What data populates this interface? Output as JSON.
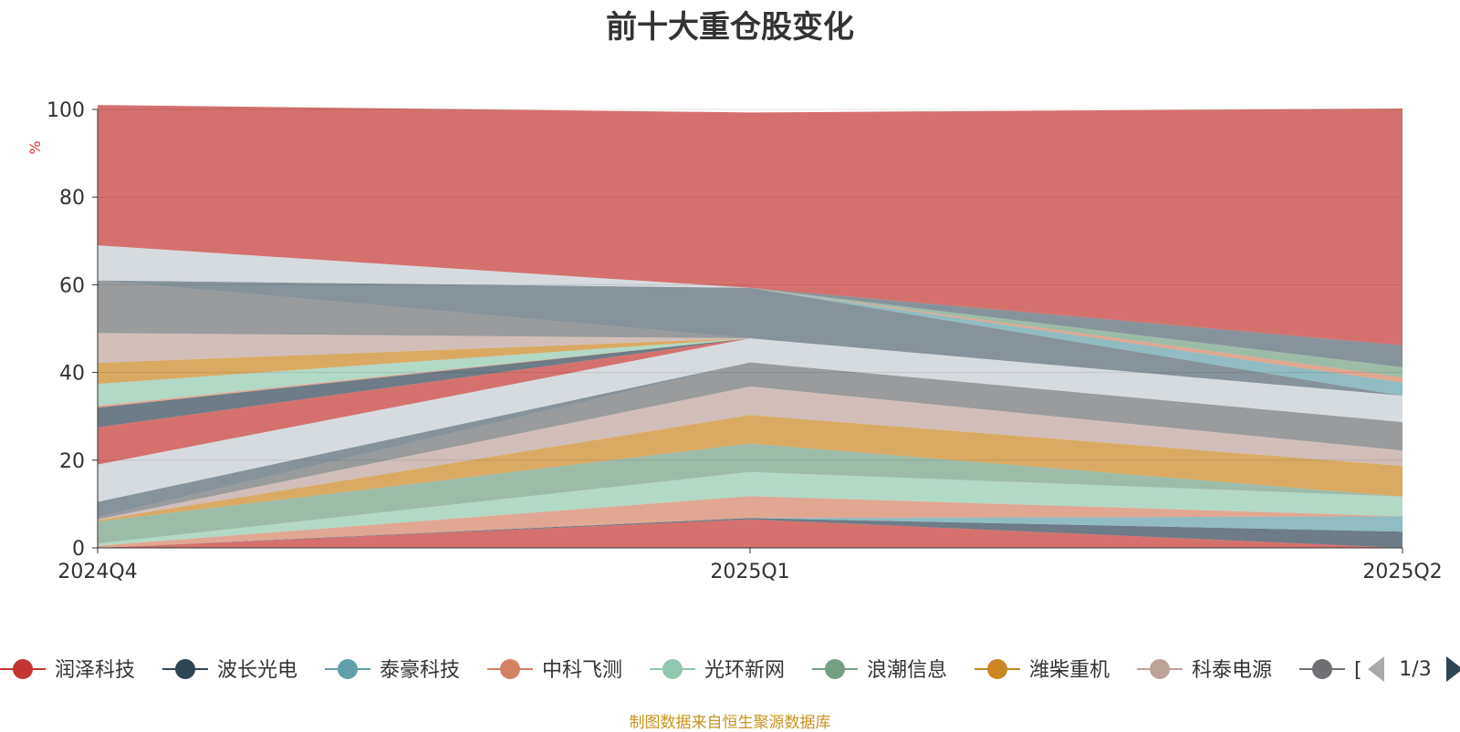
{
  "chart_data": {
    "type": "area",
    "title": "前十大重仓股变化",
    "ylabel": "%",
    "ylim": [
      0,
      100
    ],
    "yticks": [
      0,
      20,
      40,
      60,
      80,
      100
    ],
    "x": [
      "2024Q4",
      "2025Q1",
      "2025Q2"
    ],
    "grid": true,
    "legend": "bottom",
    "series": [
      {
        "name": "润泽科技",
        "color": "#c23531",
        "values": [
          0.0,
          6.5,
          0.0
        ]
      },
      {
        "name": "波长光电",
        "color": "#2f4554",
        "values": [
          0.0,
          0.3,
          3.7
        ]
      },
      {
        "name": "泰豪科技",
        "color": "#61a0a8",
        "values": [
          0.0,
          0.0,
          3.5
        ]
      },
      {
        "name": "中科飞测",
        "color": "#d48265",
        "values": [
          0.5,
          5.0,
          0.0
        ]
      },
      {
        "name": "光环新网",
        "color": "#91c7ae",
        "values": [
          0.5,
          5.5,
          4.5
        ]
      },
      {
        "name": "浪潮信息",
        "color": "#749f83",
        "values": [
          5.0,
          6.5,
          0.0
        ]
      },
      {
        "name": "潍柴重机",
        "color": "#ca8622",
        "values": [
          0.3,
          6.5,
          7.0
        ]
      },
      {
        "name": "科泰电源",
        "color": "#bda29a",
        "values": [
          0.2,
          6.5,
          3.5
        ]
      },
      {
        "name": "",
        "color": "#6e7074",
        "values": [
          0.5,
          5.5,
          6.5
        ]
      },
      {
        "name": "",
        "color": "#546570",
        "values": [
          3.5,
          0.0,
          0.0
        ]
      },
      {
        "name": "",
        "color": "#c4ccd3",
        "values": [
          8.5,
          5.5,
          6.0
        ]
      },
      {
        "name": "",
        "color": "#c23531",
        "values": [
          8.5,
          0.0,
          0.0
        ]
      },
      {
        "name": "",
        "color": "#2f4554",
        "values": [
          4.5,
          0.0,
          0.0
        ]
      },
      {
        "name": "",
        "color": "#d48265",
        "values": [
          0.4,
          0.0,
          0.0
        ]
      },
      {
        "name": "",
        "color": "#91c7ae",
        "values": [
          5.0,
          0.0,
          0.0
        ]
      },
      {
        "name": "",
        "color": "#ca8622",
        "values": [
          4.8,
          0.0,
          0.0
        ]
      },
      {
        "name": "",
        "color": "#bda29a",
        "values": [
          6.8,
          0.0,
          0.0
        ]
      },
      {
        "name": "",
        "color": "#6e7074",
        "values": [
          12.0,
          0.0,
          0.0
        ]
      },
      {
        "name": "",
        "color": "#546570",
        "values": [
          0.0,
          11.5,
          0.0
        ]
      },
      {
        "name": "",
        "color": "#61a0a8",
        "values": [
          0.0,
          0.0,
          3.0
        ]
      },
      {
        "name": "",
        "color": "#d48265",
        "values": [
          0.0,
          0.0,
          1.2
        ]
      },
      {
        "name": "",
        "color": "#749f83",
        "values": [
          0.0,
          0.0,
          2.3
        ]
      },
      {
        "name": "",
        "color": "#546570",
        "values": [
          0.0,
          0.0,
          5.0
        ]
      },
      {
        "name": "",
        "color": "#c4ccd3",
        "values": [
          8.0,
          0.0,
          0.0
        ]
      },
      {
        "name": "",
        "color": "#c23531",
        "values": [
          32.0,
          40.0,
          54.0
        ]
      }
    ]
  },
  "legend": {
    "items": [
      {
        "name": "润泽科技",
        "color": "#c23531"
      },
      {
        "name": "波长光电",
        "color": "#2f4554"
      },
      {
        "name": "泰豪科技",
        "color": "#61a0a8"
      },
      {
        "name": "中科飞测",
        "color": "#d48265"
      },
      {
        "name": "光环新网",
        "color": "#91c7ae"
      },
      {
        "name": "浪潮信息",
        "color": "#749f83"
      },
      {
        "name": "潍柴重机",
        "color": "#ca8622"
      },
      {
        "name": "科泰电源",
        "color": "#bda29a"
      },
      {
        "name": "[",
        "color": "#6e7074"
      }
    ],
    "page_indicator": "1/3",
    "prev_icon": "triangle-left-icon",
    "next_icon": "triangle-right-icon",
    "prev_color": "#aaaaaa",
    "next_color": "#2f4554"
  },
  "footer": {
    "source_note": "制图数据来自恒生聚源数据库",
    "color": "#c9931e"
  }
}
